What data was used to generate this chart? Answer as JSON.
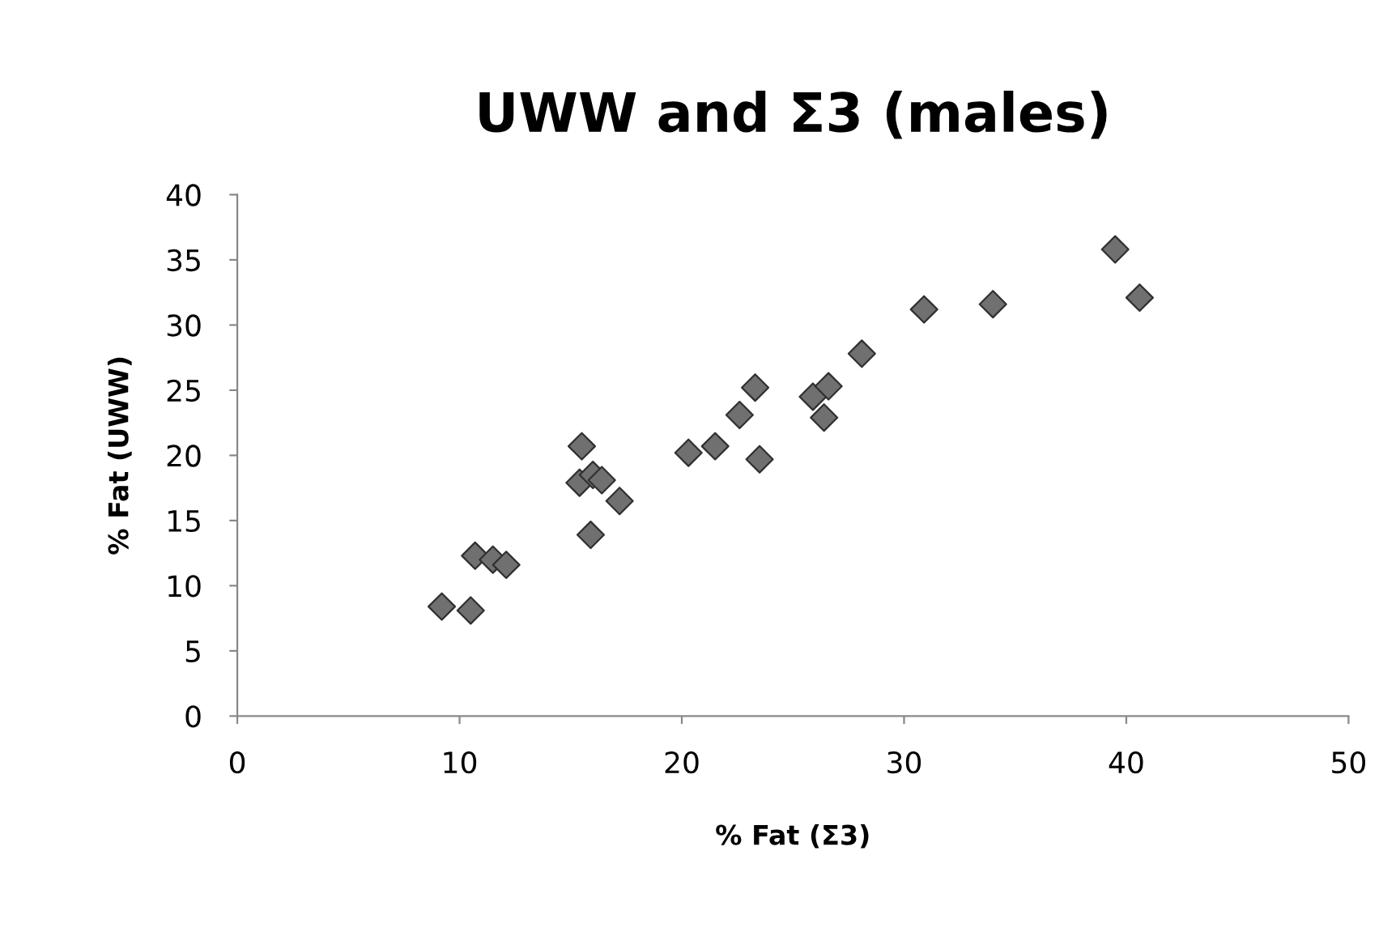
{
  "chart_data": {
    "type": "scatter",
    "title": "UWW and Σ3 (males)",
    "xlabel": "% Fat (Σ3)",
    "ylabel": "% Fat (UWW)",
    "x": [
      9.2,
      10.5,
      10.7,
      11.5,
      12.1,
      15.5,
      15.4,
      16.0,
      16.4,
      17.2,
      15.9,
      20.3,
      21.5,
      22.6,
      23.3,
      23.5,
      25.9,
      26.6,
      26.4,
      28.1,
      30.9,
      34.0,
      39.5,
      40.6
    ],
    "values": [
      8.4,
      8.1,
      12.3,
      12.0,
      11.6,
      20.7,
      17.9,
      18.5,
      18.1,
      16.5,
      13.9,
      20.2,
      20.7,
      23.1,
      25.2,
      19.7,
      24.5,
      25.3,
      22.9,
      27.8,
      31.2,
      31.6,
      35.8,
      32.1
    ],
    "color": "#707070",
    "marker": "diamond",
    "xlim": [
      0,
      50
    ],
    "xticks": [
      0,
      10,
      20,
      30,
      40,
      50
    ],
    "ylim": [
      0,
      40
    ],
    "yticks": [
      0,
      5,
      10,
      15,
      20,
      25,
      30,
      35,
      40
    ],
    "grid": false,
    "legend": false
  }
}
